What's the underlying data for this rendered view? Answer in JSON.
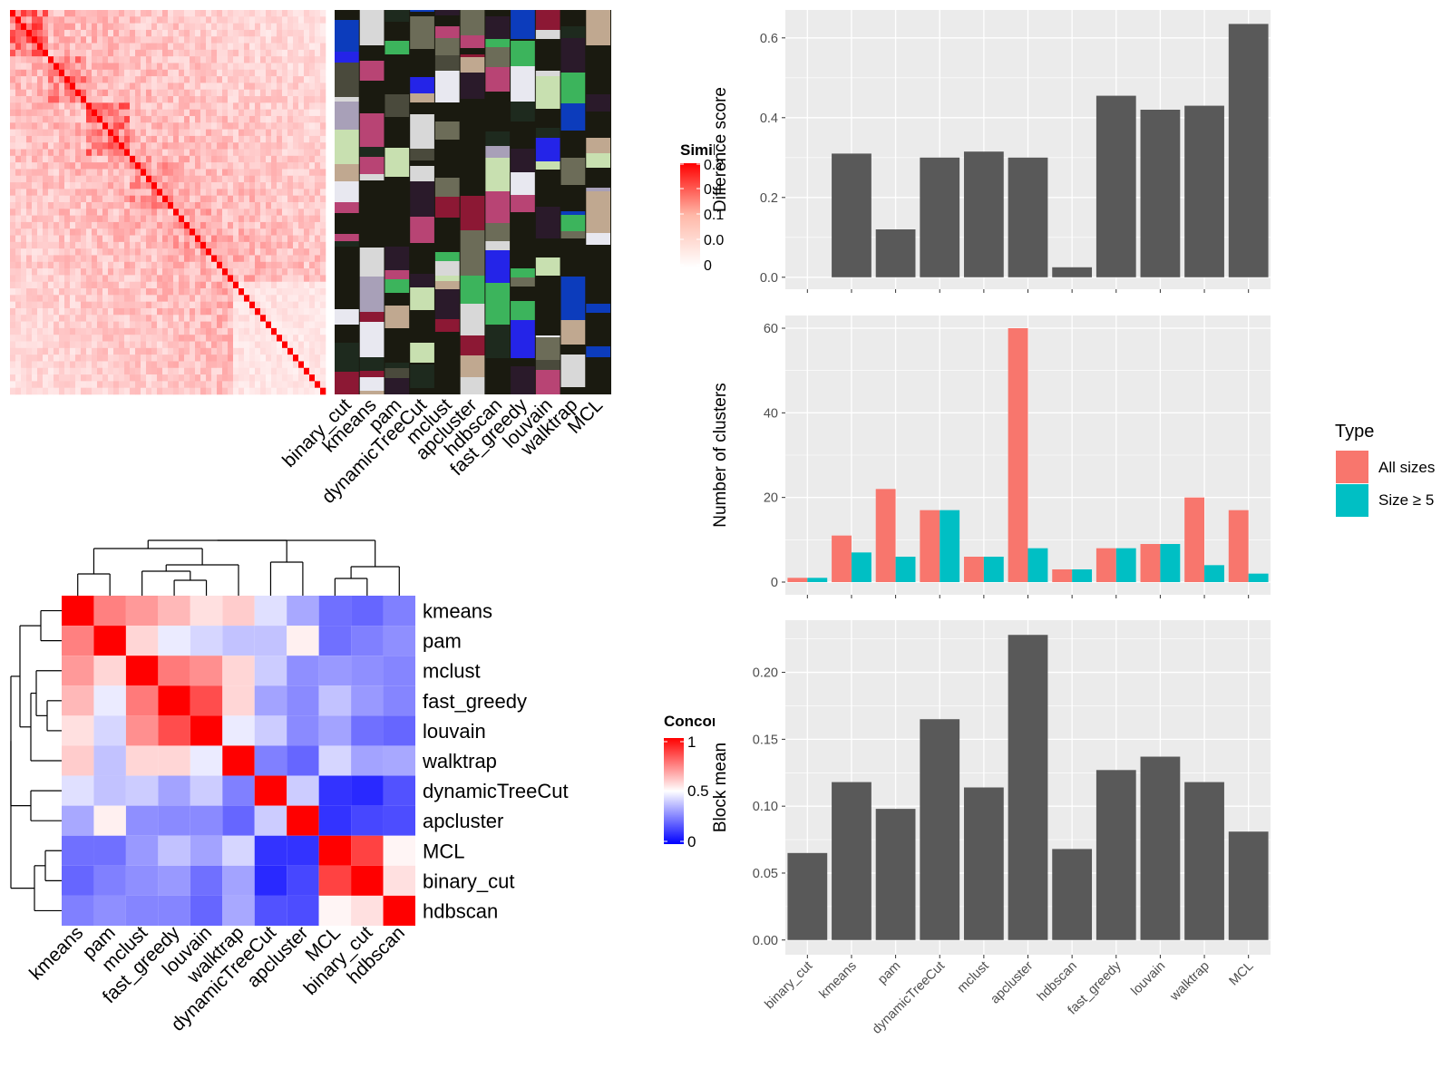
{
  "similarity_heatmap": {
    "legend_title": "Simila",
    "legend_ticks": [
      "0.2",
      "0.1",
      "0.1",
      "0.0",
      "0"
    ],
    "colors": {
      "low": "#ffffff",
      "high": "#ff0000"
    }
  },
  "membership_strip": {
    "labels": [
      "binary_cut",
      "kmeans",
      "pam",
      "dynamicTreeCut",
      "mclust",
      "apcluster",
      "hdbscan",
      "fast_greedy",
      "louvain",
      "walktrap",
      "MCL"
    ],
    "background": "#1a1a10"
  },
  "concordance_heatmap": {
    "legend_title": "Concorc",
    "legend_ticks": [
      "1",
      "0.5",
      "0"
    ],
    "colors": {
      "low": "#0000ff",
      "mid": "#ffffff",
      "high": "#ff0000"
    }
  },
  "bar_legend": {
    "title": "Type",
    "items": [
      {
        "label": "All sizes",
        "color": "#f8766d"
      },
      {
        "label": "Size ≥ 5",
        "color": "#00bfc4"
      }
    ]
  },
  "chart_data": [
    {
      "type": "heatmap",
      "title": "",
      "categories": [
        "kmeans",
        "pam",
        "mclust",
        "fast_greedy",
        "louvain",
        "walktrap",
        "dynamicTreeCut",
        "apcluster",
        "MCL",
        "binary_cut",
        "hdbscan"
      ],
      "values": [
        [
          1.0,
          0.75,
          0.7,
          0.64,
          0.56,
          0.6,
          0.44,
          0.33,
          0.22,
          0.2,
          0.25
        ],
        [
          0.75,
          1.0,
          0.58,
          0.46,
          0.42,
          0.38,
          0.38,
          0.53,
          0.22,
          0.25,
          0.28
        ],
        [
          0.7,
          0.58,
          1.0,
          0.76,
          0.72,
          0.58,
          0.4,
          0.28,
          0.3,
          0.28,
          0.26
        ],
        [
          0.64,
          0.46,
          0.76,
          1.0,
          0.85,
          0.58,
          0.32,
          0.27,
          0.38,
          0.3,
          0.26
        ],
        [
          0.56,
          0.42,
          0.72,
          0.85,
          1.0,
          0.46,
          0.4,
          0.27,
          0.32,
          0.22,
          0.2
        ],
        [
          0.6,
          0.38,
          0.58,
          0.58,
          0.46,
          1.0,
          0.25,
          0.2,
          0.42,
          0.32,
          0.33
        ],
        [
          0.44,
          0.38,
          0.4,
          0.32,
          0.4,
          0.25,
          1.0,
          0.4,
          0.1,
          0.08,
          0.16
        ],
        [
          0.33,
          0.53,
          0.28,
          0.27,
          0.27,
          0.2,
          0.4,
          1.0,
          0.1,
          0.14,
          0.15
        ],
        [
          0.22,
          0.22,
          0.3,
          0.38,
          0.32,
          0.42,
          0.1,
          0.1,
          1.0,
          0.87,
          0.52
        ],
        [
          0.2,
          0.25,
          0.28,
          0.3,
          0.22,
          0.32,
          0.08,
          0.14,
          0.87,
          1.0,
          0.56
        ],
        [
          0.25,
          0.28,
          0.26,
          0.26,
          0.2,
          0.33,
          0.16,
          0.15,
          0.52,
          0.56,
          1.0
        ]
      ],
      "range": [
        0,
        1
      ]
    },
    {
      "type": "bar",
      "title": "",
      "categories": [
        "binary_cut",
        "kmeans",
        "pam",
        "dynamicTreeCut",
        "mclust",
        "apcluster",
        "hdbscan",
        "fast_greedy",
        "louvain",
        "walktrap",
        "MCL"
      ],
      "values": [
        0.0,
        0.31,
        0.12,
        0.3,
        0.315,
        0.3,
        0.025,
        0.455,
        0.42,
        0.43,
        0.635
      ],
      "xlabel": "",
      "ylabel": "Difference score",
      "ylim": [
        -0.03,
        0.67
      ],
      "yticks": [
        0.0,
        0.2,
        0.4,
        0.6
      ],
      "ytick_labels": [
        "0.0",
        "0.2",
        "0.4",
        "0.6"
      ],
      "grid": true
    },
    {
      "type": "bar",
      "title": "",
      "categories": [
        "binary_cut",
        "kmeans",
        "pam",
        "dynamicTreeCut",
        "mclust",
        "apcluster",
        "hdbscan",
        "fast_greedy",
        "louvain",
        "walktrap",
        "MCL"
      ],
      "series": [
        {
          "name": "All sizes",
          "values": [
            1,
            11,
            22,
            17,
            6,
            60,
            3,
            8,
            9,
            20,
            17
          ]
        },
        {
          "name": "Size ≥ 5",
          "values": [
            1,
            7,
            6,
            17,
            6,
            8,
            3,
            8,
            9,
            4,
            2
          ]
        }
      ],
      "xlabel": "",
      "ylabel": "Number of clusters",
      "ylim": [
        -3,
        63
      ],
      "yticks": [
        0,
        20,
        40,
        60
      ],
      "ytick_labels": [
        "0",
        "20",
        "40",
        "60"
      ],
      "grid": true
    },
    {
      "type": "bar",
      "title": "",
      "categories": [
        "binary_cut",
        "kmeans",
        "pam",
        "dynamicTreeCut",
        "mclust",
        "apcluster",
        "hdbscan",
        "fast_greedy",
        "louvain",
        "walktrap",
        "MCL"
      ],
      "values": [
        0.065,
        0.118,
        0.098,
        0.165,
        0.114,
        0.228,
        0.068,
        0.127,
        0.137,
        0.118,
        0.081
      ],
      "xlabel": "",
      "ylabel": "Block mean",
      "ylim": [
        -0.011,
        0.239
      ],
      "yticks": [
        0.0,
        0.05,
        0.1,
        0.15,
        0.2
      ],
      "ytick_labels": [
        "0.00",
        "0.05",
        "0.10",
        "0.15",
        "0.20"
      ],
      "grid": true
    }
  ]
}
